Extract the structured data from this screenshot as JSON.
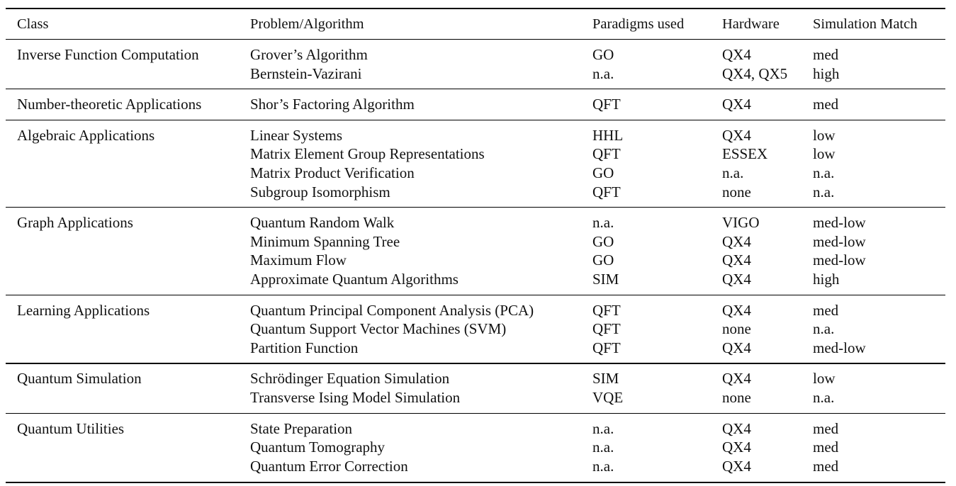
{
  "table": {
    "columns": [
      "Class",
      "Problem/Algorithm",
      "Paradigms used",
      "Hardware",
      "Simulation Match"
    ],
    "groups": [
      {
        "class": "Inverse Function Computation",
        "rows": [
          {
            "problem": "Grover’s Algorithm",
            "paradigm": "GO",
            "hardware": "QX4",
            "match": "med"
          },
          {
            "problem": "Bernstein-Vazirani",
            "paradigm": "n.a.",
            "hardware": "QX4, QX5",
            "match": "high"
          }
        ]
      },
      {
        "class": "Number-theoretic Applications",
        "rows": [
          {
            "problem": "Shor’s Factoring Algorithm",
            "paradigm": "QFT",
            "hardware": "QX4",
            "match": "med"
          }
        ]
      },
      {
        "class": "Algebraic Applications",
        "rows": [
          {
            "problem": "Linear Systems",
            "paradigm": "HHL",
            "hardware": "QX4",
            "match": "low"
          },
          {
            "problem": "Matrix Element Group Representations",
            "paradigm": "QFT",
            "hardware": "ESSEX",
            "match": "low"
          },
          {
            "problem": "Matrix Product Verification",
            "paradigm": "GO",
            "hardware": "n.a.",
            "match": "n.a."
          },
          {
            "problem": "Subgroup Isomorphism",
            "paradigm": "QFT",
            "hardware": "none",
            "match": "n.a."
          }
        ]
      },
      {
        "class": "Graph Applications",
        "rows": [
          {
            "problem": "Quantum Random Walk",
            "paradigm": "n.a.",
            "hardware": "VIGO",
            "match": "med-low"
          },
          {
            "problem": "Minimum Spanning Tree",
            "paradigm": "GO",
            "hardware": "QX4",
            "match": "med-low"
          },
          {
            "problem": "Maximum Flow",
            "paradigm": "GO",
            "hardware": "QX4",
            "match": "med-low"
          },
          {
            "problem": "Approximate Quantum Algorithms",
            "paradigm": "SIM",
            "hardware": "QX4",
            "match": "high"
          }
        ]
      },
      {
        "class": "Learning Applications",
        "rows": [
          {
            "problem": "Quantum Principal Component Analysis (PCA)",
            "paradigm": "QFT",
            "hardware": "QX4",
            "match": "med"
          },
          {
            "problem": "Quantum Support Vector Machines (SVM)",
            "paradigm": "QFT",
            "hardware": "none",
            "match": "n.a."
          },
          {
            "problem": "Partition Function",
            "paradigm": "QFT",
            "hardware": "QX4",
            "match": "med-low"
          }
        ]
      },
      {
        "class": "Quantum Simulation",
        "rows": [
          {
            "problem": "Schrödinger Equation Simulation",
            "paradigm": "SIM",
            "hardware": "QX4",
            "match": "low"
          },
          {
            "problem": "Transverse Ising Model Simulation",
            "paradigm": "VQE",
            "hardware": "none",
            "match": "n.a."
          }
        ]
      },
      {
        "class": "Quantum Utilities",
        "rows": [
          {
            "problem": "State Preparation",
            "paradigm": "n.a.",
            "hardware": "QX4",
            "match": "med"
          },
          {
            "problem": "Quantum Tomography",
            "paradigm": "n.a.",
            "hardware": "QX4",
            "match": "med"
          },
          {
            "problem": "Quantum Error Correction",
            "paradigm": "n.a.",
            "hardware": "QX4",
            "match": "med"
          }
        ]
      }
    ]
  }
}
